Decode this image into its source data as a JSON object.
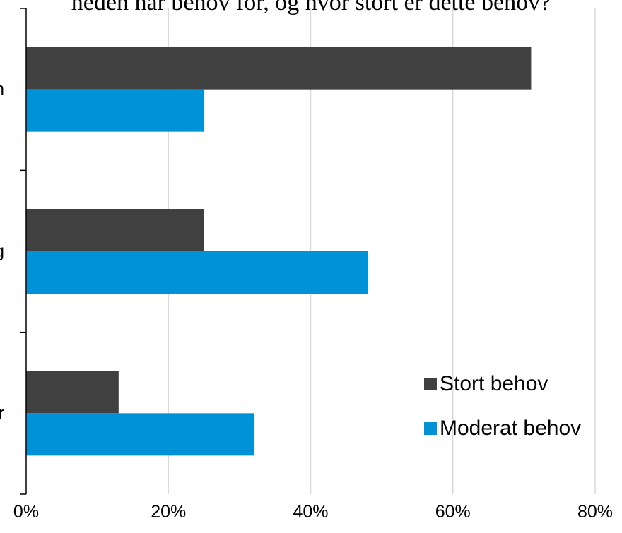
{
  "chart_data": {
    "type": "bar",
    "orientation": "horizontal",
    "title": "heden har behov for, og hvor stort er dette behov?",
    "categories": [
      "n",
      "g",
      "r"
    ],
    "series": [
      {
        "name": "Stort behov",
        "color": "#404040",
        "values": [
          71,
          25,
          13
        ]
      },
      {
        "name": "Moderat behov",
        "color": "#0092d7",
        "values": [
          25,
          48,
          32
        ]
      }
    ],
    "xlim": [
      0,
      80
    ],
    "x_ticks": [
      0,
      20,
      40,
      60,
      80
    ],
    "x_tick_labels": [
      "0%",
      "20%",
      "40%",
      "60%",
      "80%"
    ],
    "unit": "%",
    "grid": true,
    "legend_position": "bottom-right"
  }
}
